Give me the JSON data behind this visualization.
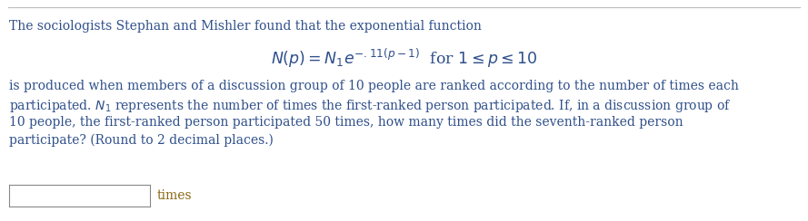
{
  "background_color": "#ffffff",
  "text_color": "#2e4f8a",
  "times_color": "#8b6914",
  "line_color": "#bbbbbb",
  "fig_width": 8.89,
  "fig_height": 2.44,
  "dpi": 100,
  "line1": "The sociologists Stephan and Mishler found that the exponential function",
  "formula": "$N(p) = N_1e^{-.11(p-1)}$  for $1 \\leq p \\leq 10$",
  "line3": "is produced when members of a discussion group of 10 people are ranked according to the number of times each",
  "line4": "participated. $N_1$ represents the number of times the first-ranked person participated. If, in a discussion group of",
  "line5": "10 people, the first-ranked person participated 50 times, how many times did the seventh-ranked person",
  "line6": "participate? (Round to 2 decimal places.)",
  "answer_label": "times",
  "font_size": 10.0,
  "formula_font_size": 12.5
}
